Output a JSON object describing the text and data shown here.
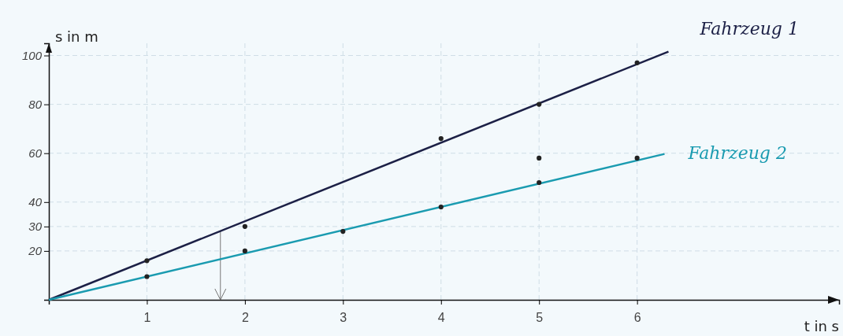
{
  "chart_data": {
    "type": "line",
    "xlabel": "t in s",
    "ylabel": "s in m",
    "xlim": [
      0,
      8.06
    ],
    "ylim": [
      0,
      105
    ],
    "xticks": [
      1,
      2,
      3,
      4,
      5,
      6
    ],
    "yticks": [
      20,
      30,
      40,
      60,
      80,
      100
    ],
    "grid": true,
    "legend": false,
    "series": [
      {
        "name": "Fahrzeug 1",
        "color": "#1c2046",
        "x": [
          0,
          6.32
        ],
        "values": [
          0,
          101.6
        ]
      },
      {
        "name": "Fahrzeug 2",
        "color": "#1a9bb0",
        "x": [
          0,
          6.28
        ],
        "values": [
          0,
          59.7
        ]
      },
      {
        "type": "scatter",
        "color": "#222222",
        "marker": "circle",
        "x": [
          1,
          2,
          4,
          5,
          6
        ],
        "values": [
          16,
          30,
          66,
          80,
          97
        ]
      },
      {
        "type": "scatter",
        "color": "#222222",
        "marker": "circle",
        "x": [
          1,
          2,
          3,
          4,
          5,
          5,
          6
        ],
        "values": [
          9.5,
          20,
          28,
          38,
          48,
          58,
          58
        ]
      }
    ],
    "ref_lines": [
      {
        "axis": "x",
        "value": 1.75,
        "color": "#777777"
      }
    ]
  }
}
